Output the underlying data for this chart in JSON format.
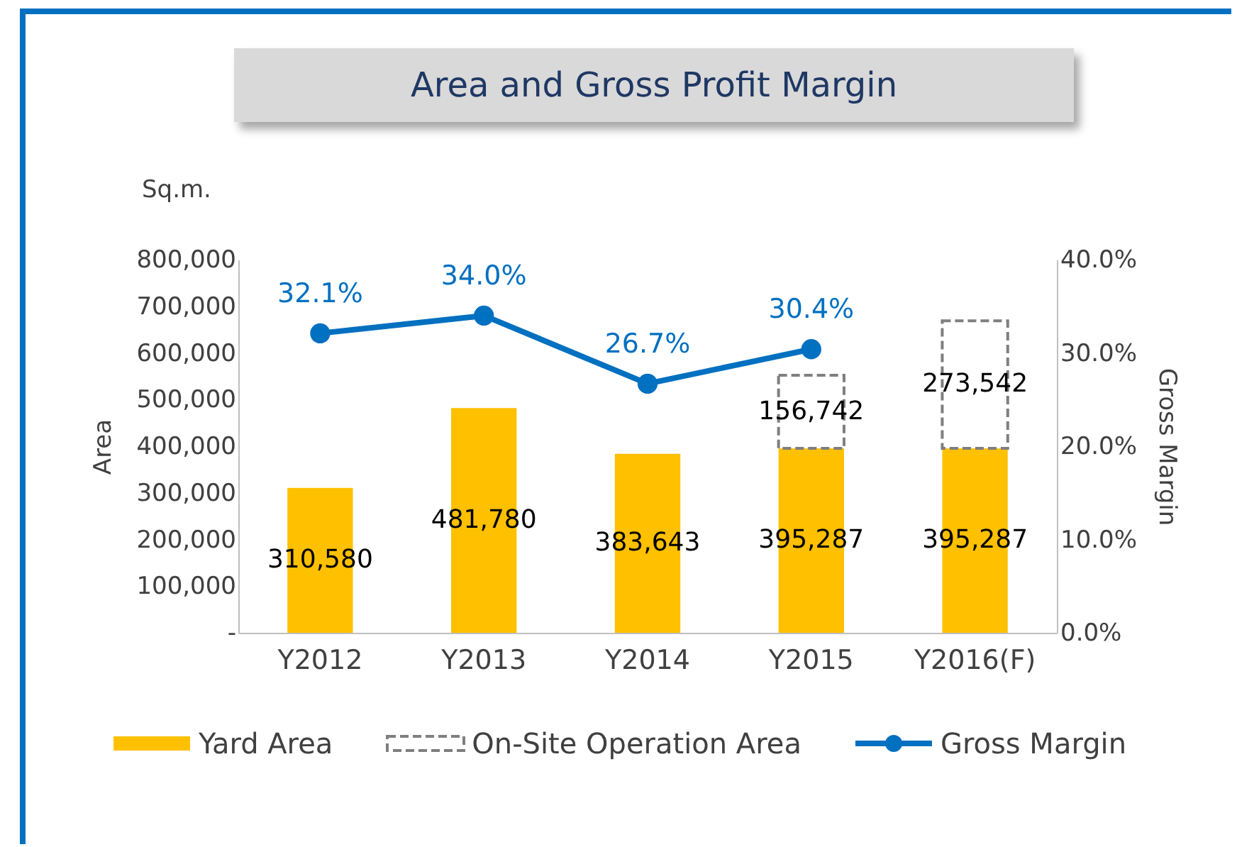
{
  "chart_data": {
    "type": "bar",
    "title": "Area and Gross Profit Margin",
    "ylabel": "Area",
    "y2label": "Gross Margin",
    "annotations": [
      "Sq.m."
    ],
    "categories": [
      "Y2012",
      "Y2013",
      "Y2014",
      "Y2015",
      "Y2016(F)"
    ],
    "stacked": true,
    "series": [
      {
        "name": "Yard Area",
        "color": "#ffc000",
        "values": [
          310580,
          481780,
          383643,
          395287,
          395287
        ],
        "value_labels": [
          "310,580",
          "481,780",
          "383,643",
          "395,287",
          "395,287"
        ]
      },
      {
        "name": "On-Site Operation Area",
        "color": "#7f7f7f",
        "line_style": "dashed",
        "values": [
          null,
          null,
          null,
          156742,
          273542
        ],
        "value_labels": [
          null,
          null,
          null,
          "156,742",
          "273,542"
        ]
      },
      {
        "name": "Gross Margin",
        "type": "line",
        "axis": "y2",
        "color": "#0070c0",
        "marker": "circle",
        "values": [
          32.1,
          34.0,
          26.7,
          30.4,
          null
        ],
        "value_labels": [
          "32.1%",
          "34.0%",
          "26.7%",
          "30.4%",
          null
        ]
      }
    ],
    "ylim": [
      0,
      800000
    ],
    "yticks": [
      {
        "value": 0,
        "label": "-"
      },
      {
        "value": 100000,
        "label": "100,000"
      },
      {
        "value": 200000,
        "label": "200,000"
      },
      {
        "value": 300000,
        "label": "300,000"
      },
      {
        "value": 400000,
        "label": "400,000"
      },
      {
        "value": 500000,
        "label": "500,000"
      },
      {
        "value": 600000,
        "label": "600,000"
      },
      {
        "value": 700000,
        "label": "700,000"
      },
      {
        "value": 800000,
        "label": "800,000"
      }
    ],
    "y2lim": [
      0,
      40
    ],
    "y2ticks": [
      {
        "value": 0,
        "label": "0.0%"
      },
      {
        "value": 10,
        "label": "10.0%"
      },
      {
        "value": 20,
        "label": "20.0%"
      },
      {
        "value": 30,
        "label": "30.0%"
      },
      {
        "value": 40,
        "label": "40.0%"
      }
    ],
    "grid": false,
    "legend": "bottom"
  }
}
